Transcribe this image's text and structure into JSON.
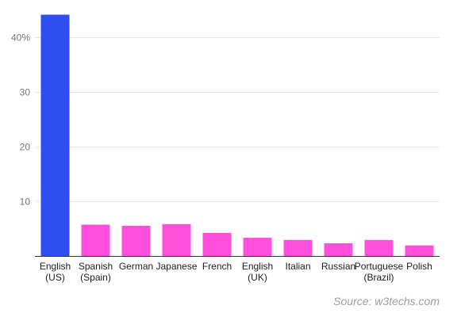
{
  "chart_data": {
    "type": "bar",
    "categories": [
      [
        "English",
        "(US)"
      ],
      [
        "Spanish",
        "(Spain)"
      ],
      [
        "German"
      ],
      [
        "Japanese"
      ],
      [
        "French"
      ],
      [
        "English",
        "(UK)"
      ],
      [
        "Italian"
      ],
      [
        "Russian"
      ],
      [
        "Portuguese",
        "(Brazil)"
      ],
      [
        "Polish"
      ]
    ],
    "values": [
      44.2,
      5.8,
      5.6,
      5.9,
      4.3,
      3.4,
      3.0,
      2.4,
      3.0,
      2.0
    ],
    "bar_colors": [
      "#2f4ef0",
      "#ff4fdc",
      "#ff4fdc",
      "#ff4fdc",
      "#ff4fdc",
      "#ff4fdc",
      "#ff4fdc",
      "#ff4fdc",
      "#ff4fdc",
      "#ff4fdc"
    ],
    "ylim": [
      0,
      46
    ],
    "yticks": [
      10,
      20,
      30,
      40
    ],
    "ytick_labels": [
      "10",
      "20",
      "30",
      "40%"
    ],
    "grid": true,
    "legend": "none",
    "source": "Source: w3techs.com"
  }
}
